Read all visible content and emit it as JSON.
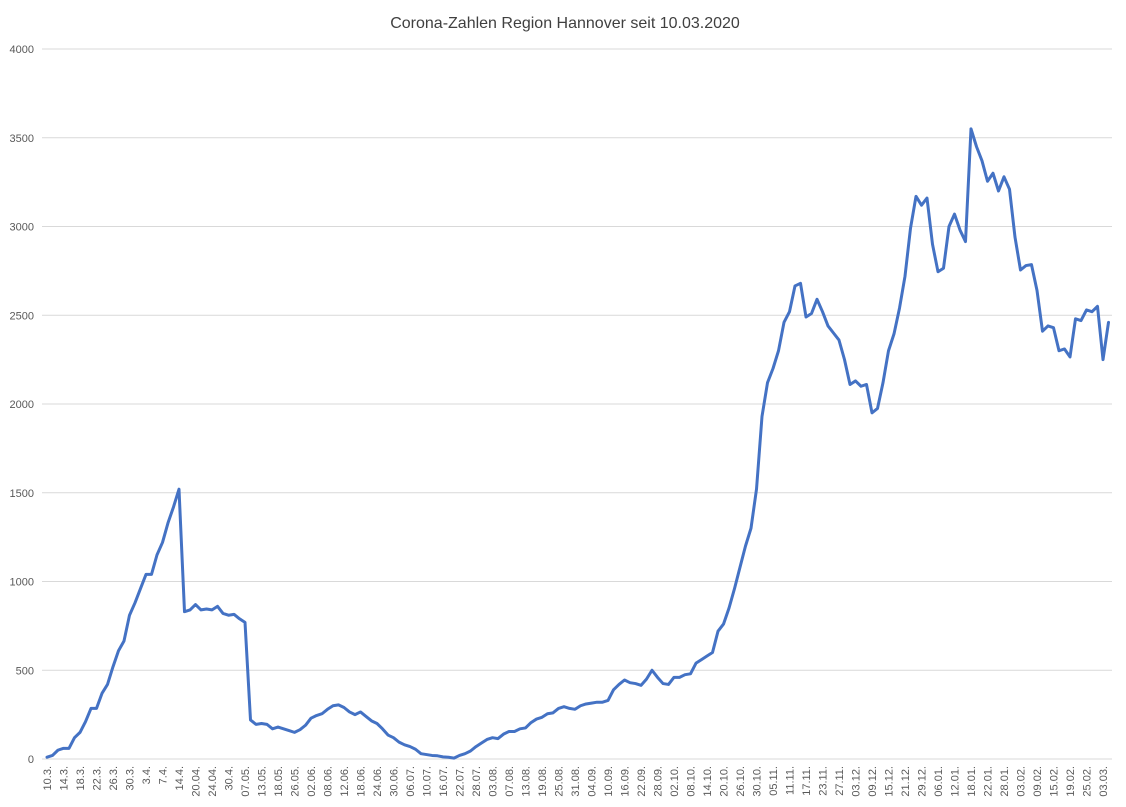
{
  "chart_data": {
    "type": "line",
    "title": "Corona-Zahlen Region Hannover seit 10.03.2020",
    "categories": [
      "10.3.",
      null,
      null,
      "14.3.",
      null,
      null,
      "18.3.",
      null,
      null,
      "22.3.",
      null,
      null,
      "26.3.",
      null,
      null,
      "30.3.",
      null,
      null,
      "3.4.",
      null,
      null,
      "7.4.",
      null,
      null,
      "14.4.",
      null,
      null,
      "20.04.",
      null,
      null,
      "24.04.",
      null,
      null,
      "30.4.",
      null,
      null,
      "07.05.",
      null,
      null,
      "13.05.",
      null,
      null,
      "18.05.",
      null,
      null,
      "26.05.",
      null,
      null,
      "02.06.",
      null,
      null,
      "08.06.",
      null,
      null,
      "12.06.",
      null,
      null,
      "18.06.",
      null,
      null,
      "24.06.",
      null,
      null,
      "30.06.",
      null,
      null,
      "06.07.",
      null,
      null,
      "10.07.",
      null,
      null,
      "16.07.",
      null,
      null,
      "22.07.",
      null,
      null,
      "28.07.",
      null,
      null,
      "03.08.",
      null,
      null,
      "07.08.",
      null,
      null,
      "13.08.",
      null,
      null,
      "19.08.",
      null,
      null,
      "25.08.",
      null,
      null,
      "31.08.",
      null,
      null,
      "04.09.",
      null,
      null,
      "10.09.",
      null,
      null,
      "16.09.",
      null,
      null,
      "22.09.",
      null,
      null,
      "28.09.",
      null,
      null,
      "02.10.",
      null,
      null,
      "08.10.",
      null,
      null,
      "14.10.",
      null,
      null,
      "20.10.",
      null,
      null,
      "26.10.",
      null,
      null,
      "30.10.",
      null,
      null,
      "05.11.",
      null,
      null,
      "11.11.",
      null,
      null,
      "17.11.",
      null,
      null,
      "23.11.",
      null,
      null,
      "27.11.",
      null,
      null,
      "03.12.",
      null,
      null,
      "09.12.",
      null,
      null,
      "15.12.",
      null,
      null,
      "21.12.",
      null,
      null,
      "29.12.",
      null,
      null,
      "06.01.",
      null,
      null,
      "12.01.",
      null,
      null,
      "18.01.",
      null,
      null,
      "22.01.",
      null,
      null,
      "28.01.",
      null,
      null,
      "03.02.",
      null,
      null,
      "09.02.",
      null,
      null,
      "15.02.",
      null,
      null,
      "19.02.",
      null,
      null,
      "25.02.",
      null,
      null,
      "03.03.",
      null
    ],
    "values": [
      10,
      20,
      50,
      60,
      60,
      120,
      150,
      210,
      285,
      285,
      370,
      420,
      520,
      610,
      665,
      810,
      880,
      960,
      1040,
      1040,
      1150,
      1220,
      1330,
      1420,
      1520,
      830,
      840,
      870,
      840,
      845,
      840,
      860,
      820,
      810,
      815,
      790,
      770,
      220,
      195,
      200,
      195,
      170,
      180,
      170,
      160,
      150,
      165,
      190,
      230,
      245,
      255,
      280,
      300,
      305,
      290,
      265,
      250,
      265,
      240,
      215,
      200,
      170,
      135,
      120,
      95,
      80,
      70,
      55,
      30,
      25,
      20,
      18,
      12,
      10,
      5,
      20,
      30,
      45,
      70,
      90,
      110,
      120,
      115,
      140,
      155,
      155,
      170,
      175,
      205,
      225,
      235,
      255,
      260,
      285,
      295,
      285,
      280,
      300,
      310,
      315,
      320,
      320,
      330,
      390,
      420,
      445,
      430,
      425,
      415,
      450,
      500,
      460,
      425,
      420,
      460,
      460,
      475,
      480,
      540,
      560,
      580,
      600,
      720,
      760,
      850,
      960,
      1080,
      1200,
      1300,
      1520,
      1930,
      2120,
      2200,
      2300,
      2460,
      2520,
      2665,
      2680,
      2490,
      2510,
      2590,
      2520,
      2440,
      2400,
      2360,
      2250,
      2110,
      2130,
      2100,
      2110,
      1950,
      1975,
      2120,
      2300,
      2395,
      2540,
      2720,
      2990,
      3170,
      3120,
      3160,
      2900,
      2745,
      2765,
      3000,
      3070,
      2980,
      2915,
      3550,
      3450,
      3370,
      3255,
      3300,
      3200,
      3280,
      3210,
      2940,
      2755,
      2780,
      2785,
      2640,
      2410,
      2440,
      2430,
      2300,
      2310,
      2265,
      2480,
      2470,
      2530,
      2520,
      2550,
      2250,
      2460
    ],
    "color": "#4472c4",
    "ylim": [
      0,
      4000
    ],
    "yticks": [
      0,
      500,
      1000,
      1500,
      2000,
      2500,
      3000,
      3500,
      4000
    ],
    "grid": true
  }
}
